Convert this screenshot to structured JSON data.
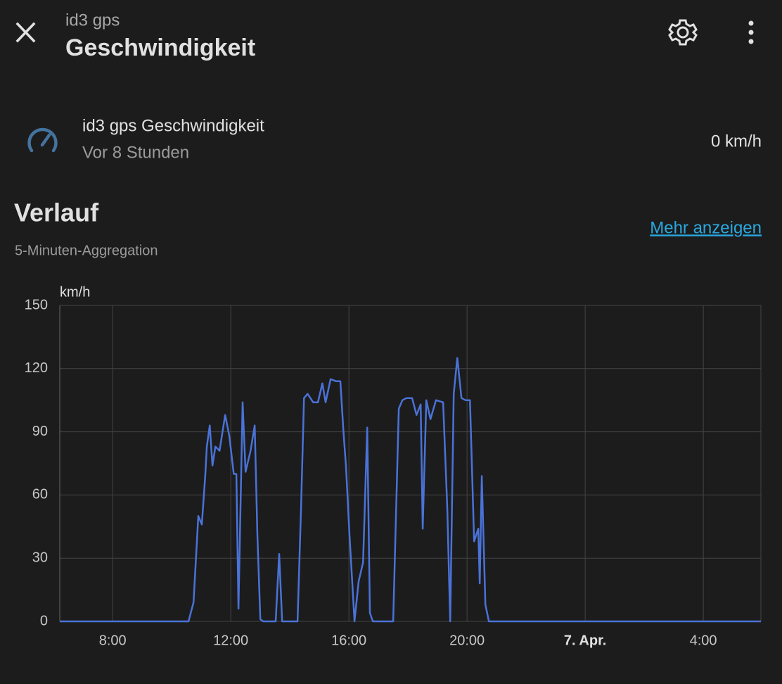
{
  "header": {
    "subtitle": "id3 gps",
    "title": "Geschwindigkeit"
  },
  "entity": {
    "name": "id3 gps Geschwindigkeit",
    "time": "Vor 8 Stunden",
    "state": "0 km/h"
  },
  "history": {
    "title": "Verlauf",
    "link": "Mehr anzeigen",
    "aggregation": "5-Minuten-Aggregation"
  },
  "chart_data": {
    "type": "line",
    "ylabel": "km/h",
    "color": "#4a72d8",
    "x": [
      6.21,
      10.57,
      10.74,
      10.9,
      11.02,
      11.14,
      11.19,
      11.29,
      11.38,
      11.48,
      11.62,
      11.81,
      11.95,
      12.1,
      12.19,
      12.26,
      12.4,
      12.5,
      12.67,
      12.81,
      12.9,
      13.0,
      13.1,
      13.52,
      13.64,
      13.74,
      14.26,
      14.38,
      14.48,
      14.6,
      14.79,
      14.95,
      15.1,
      15.21,
      15.38,
      15.57,
      15.71,
      15.81,
      15.9,
      16.02,
      16.19,
      16.33,
      16.48,
      16.62,
      16.71,
      16.81,
      17.5,
      17.69,
      17.81,
      17.95,
      18.14,
      18.29,
      18.43,
      18.5,
      18.62,
      18.76,
      18.95,
      19.19,
      19.33,
      19.43,
      19.55,
      19.67,
      19.81,
      19.95,
      20.1,
      20.24,
      20.38,
      20.43,
      20.5,
      20.62,
      20.74,
      29.95
    ],
    "values": [
      0,
      0,
      9,
      50,
      46,
      70,
      83,
      93,
      74,
      83,
      81,
      98,
      88,
      70,
      70,
      6,
      104,
      71,
      81,
      93,
      41,
      1,
      0,
      0,
      32,
      0,
      0,
      54,
      106,
      108,
      104,
      104,
      113,
      104,
      115,
      114,
      114,
      91,
      74,
      41,
      0,
      19,
      28,
      92,
      4,
      0,
      0,
      101,
      105,
      106,
      106,
      98,
      103,
      44,
      105,
      96,
      105,
      104,
      54,
      0,
      108,
      125,
      106,
      105,
      105,
      38,
      44,
      18,
      69,
      8,
      0,
      0
    ],
    "xlim": [
      6.21,
      29.95
    ],
    "ylim": [
      0,
      150
    ],
    "xticks": [
      {
        "value": 8,
        "label": "8:00"
      },
      {
        "value": 12,
        "label": "12:00"
      },
      {
        "value": 16,
        "label": "16:00"
      },
      {
        "value": 20,
        "label": "20:00"
      },
      {
        "value": 24,
        "label": "7. Apr."
      },
      {
        "value": 28,
        "label": "4:00"
      }
    ],
    "yticks": [
      0,
      30,
      60,
      90,
      120,
      150
    ],
    "grid": true
  }
}
